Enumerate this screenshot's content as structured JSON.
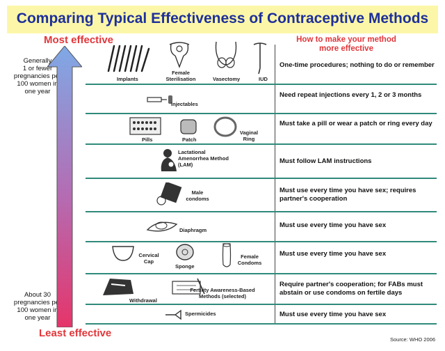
{
  "title": "Comparing Typical Effectiveness of Contraceptive Methods",
  "scale": {
    "most_label": "Most effective",
    "least_label": "Least effective",
    "top_note": [
      "Generally",
      "1 or fewer",
      "pregnancies per",
      "100 women in",
      "one year"
    ],
    "bottom_note": [
      "About 30",
      "pregnancies per",
      "100 women in",
      "one year"
    ],
    "arrow_colors": {
      "top": "#7fa9e6",
      "bottom": "#e5356a"
    }
  },
  "howto_header": [
    "How to make your method",
    "more effective"
  ],
  "rows": [
    {
      "methods": [
        "Implants",
        "Female Sterilisation",
        "Vasectomy",
        "IUD"
      ],
      "instruction": "One-time procedures; nothing to do or remember"
    },
    {
      "methods": [
        "Injectables"
      ],
      "instruction": "Need repeat injections every 1, 2 or 3 months"
    },
    {
      "methods": [
        "Pills",
        "Patch",
        "Vaginal Ring"
      ],
      "instruction": "Must take a pill or wear a patch or ring every day"
    },
    {
      "methods": [
        "Lactational Amenorrhea Method (LAM)"
      ],
      "instruction": "Must follow LAM instructions"
    },
    {
      "methods": [
        "Male condoms"
      ],
      "instruction": "Must use every time you have sex; requires partner's cooperation"
    },
    {
      "methods": [
        "Diaphragm"
      ],
      "instruction": "Must use every time you have sex"
    },
    {
      "methods": [
        "Cervical Cap",
        "Sponge",
        "Female Condoms"
      ],
      "instruction": "Must use every time you have sex"
    },
    {
      "methods": [
        "Withdrawal",
        "Fertility Awareness-Based Methods (selected)"
      ],
      "instruction": "Require partner's cooperation; for FABs must abstain or use condoms on fertile days"
    },
    {
      "methods": [
        "Spermicides"
      ],
      "instruction": "Must use every time you have sex"
    }
  ],
  "source": "Source: WHO 2006",
  "colors": {
    "title": "#1e2f9a",
    "accent_red": "#e2363a",
    "title_bg": "#fcf7a8",
    "rule": "#2f8a7a"
  }
}
